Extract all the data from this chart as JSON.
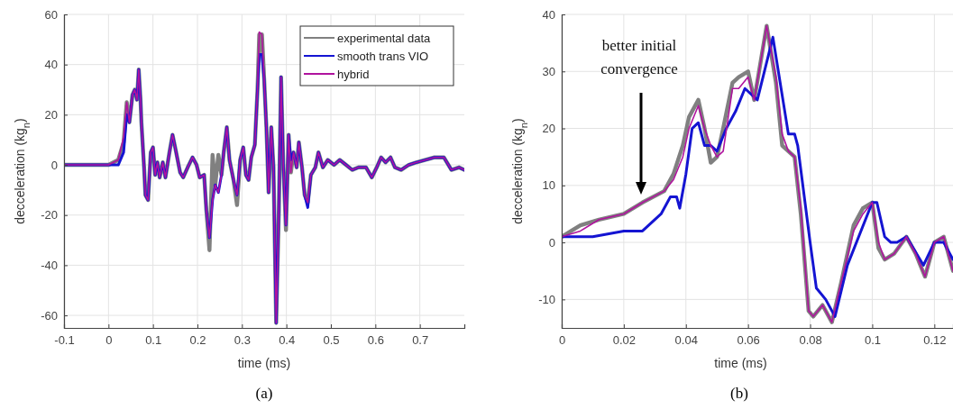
{
  "chart_data": [
    {
      "type": "line",
      "title": "(a)",
      "xlabel": "time (ms)",
      "ylabel": "decceleration (kg$_{n}$)",
      "xlim": [
        -0.1,
        0.8
      ],
      "xticks": [
        -0.1,
        0,
        0.1,
        0.2,
        0.3,
        0.4,
        0.5,
        0.6,
        0.7
      ],
      "ylim": [
        -65,
        60
      ],
      "yticks": [
        -60,
        -40,
        -20,
        0,
        20,
        40,
        60
      ],
      "grid": true,
      "legend": "top right",
      "x": [
        -0.1,
        0,
        0.022,
        0.034,
        0.041,
        0.047,
        0.054,
        0.059,
        0.064,
        0.068,
        0.072,
        0.074,
        0.08,
        0.083,
        0.089,
        0.095,
        0.1,
        0.105,
        0.11,
        0.115,
        0.122,
        0.128,
        0.137,
        0.144,
        0.151,
        0.161,
        0.168,
        0.178,
        0.189,
        0.198,
        0.205,
        0.215,
        0.22,
        0.227,
        0.234,
        0.24,
        0.247,
        0.254,
        0.259,
        0.266,
        0.272,
        0.281,
        0.289,
        0.296,
        0.303,
        0.309,
        0.315,
        0.321,
        0.329,
        0.335,
        0.339,
        0.345,
        0.35,
        0.355,
        0.36,
        0.366,
        0.371,
        0.377,
        0.383,
        0.388,
        0.393,
        0.399,
        0.405,
        0.41,
        0.416,
        0.423,
        0.428,
        0.435,
        0.441,
        0.448,
        0.455,
        0.465,
        0.472,
        0.482,
        0.493,
        0.507,
        0.52,
        0.534,
        0.548,
        0.562,
        0.579,
        0.592,
        0.603,
        0.613,
        0.623,
        0.634,
        0.644,
        0.658,
        0.675,
        0.692,
        0.713,
        0.733,
        0.754,
        0.771,
        0.788,
        0.8
      ],
      "series": [
        {
          "name": "experimental data",
          "color": "#808080",
          "values": [
            0,
            0,
            2,
            9,
            25,
            17,
            28,
            30,
            26,
            38,
            26,
            17,
            -1,
            -12,
            -14,
            5,
            7,
            -4,
            1,
            -5,
            1,
            -5,
            5,
            12,
            6,
            -3,
            -5,
            -1,
            3,
            0,
            -5,
            -4,
            -18,
            -34,
            4,
            -8,
            4,
            -4,
            5,
            15,
            2,
            -6,
            -16,
            2,
            7,
            -4,
            -6,
            3,
            8,
            30,
            52,
            52,
            34,
            15,
            -11,
            15,
            -1,
            -63,
            -18,
            35,
            0,
            -26,
            12,
            -3,
            5,
            -1,
            9,
            -1,
            -12,
            -15,
            -4,
            -1,
            5,
            -1,
            2,
            0,
            2,
            0,
            -2,
            -1,
            -1,
            -5,
            -1,
            3,
            1,
            3,
            -1,
            -2,
            0,
            1,
            2,
            3,
            3,
            -2,
            -1,
            -2
          ]
        },
        {
          "name": "smooth trans VIO",
          "color": "#1414d2",
          "values": [
            0,
            0,
            0,
            5,
            20,
            17,
            28,
            30,
            26,
            38,
            26,
            17,
            -1,
            -12,
            -14,
            5,
            7,
            -4,
            1,
            -5,
            1,
            -5,
            5,
            12,
            6,
            -3,
            -5,
            -1,
            3,
            0,
            -5,
            -4,
            -18,
            -29,
            -14,
            -8,
            -11,
            -4,
            5,
            15,
            2,
            -6,
            -12,
            2,
            7,
            -4,
            -6,
            3,
            8,
            30,
            44,
            44,
            34,
            15,
            -11,
            15,
            -1,
            -63,
            -18,
            35,
            0,
            -24,
            12,
            2,
            5,
            -1,
            9,
            -1,
            -12,
            -17,
            -4,
            -1,
            5,
            -1,
            2,
            0,
            2,
            0,
            -2,
            -1,
            -1,
            -5,
            -1,
            3,
            1,
            3,
            -1,
            -2,
            0,
            1,
            2,
            3,
            3,
            -2,
            -1,
            -2
          ]
        },
        {
          "name": "hybrid",
          "color": "#b0139e",
          "values": [
            0,
            0,
            2,
            11,
            25,
            17,
            28,
            30,
            26,
            38,
            26,
            17,
            -1,
            -12,
            -14,
            5,
            7,
            -4,
            1,
            -5,
            1,
            -5,
            5,
            12,
            6,
            -3,
            -5,
            -1,
            3,
            0,
            -5,
            -4,
            -18,
            -29,
            -14,
            -8,
            -11,
            -4,
            5,
            15,
            2,
            -6,
            -12,
            2,
            7,
            -4,
            -6,
            3,
            8,
            30,
            53,
            52,
            34,
            15,
            -11,
            15,
            -1,
            -63,
            -18,
            35,
            0,
            -24,
            12,
            -3,
            5,
            -1,
            9,
            -1,
            -12,
            -15,
            -4,
            -1,
            5,
            -1,
            2,
            0,
            2,
            0,
            -2,
            -1,
            -1,
            -5,
            -1,
            3,
            1,
            3,
            -1,
            -2,
            0,
            1,
            2,
            3,
            3,
            -2,
            -1,
            -2
          ]
        }
      ]
    },
    {
      "type": "line",
      "title": "(b)",
      "xlabel": "time (ms)",
      "ylabel": "decceleration (kg$_{n}$)",
      "xlim": [
        0,
        0.126
      ],
      "xticks": [
        0,
        0.02,
        0.04,
        0.06,
        0.08,
        0.1,
        0.12
      ],
      "ylim": [
        -15,
        40
      ],
      "yticks": [
        -10,
        0,
        10,
        20,
        30,
        40
      ],
      "grid": true,
      "annotations": [
        "better initial\nconvergence"
      ],
      "series": [
        {
          "color": "#808080",
          "x": [
            0,
            0.006,
            0.012,
            0.02,
            0.026,
            0.033,
            0.036,
            0.039,
            0.041,
            0.044,
            0.046,
            0.048,
            0.05,
            0.052,
            0.055,
            0.057,
            0.06,
            0.062,
            0.066,
            0.069,
            0.071,
            0.073,
            0.075,
            0.077,
            0.0795,
            0.081,
            0.084,
            0.087,
            0.09,
            0.094,
            0.097,
            0.1,
            0.102,
            0.104,
            0.107,
            0.111,
            0.114,
            0.117,
            0.12,
            0.123,
            0.126
          ],
          "values": [
            1,
            3,
            4,
            5,
            7,
            9,
            12,
            17,
            22,
            25,
            20,
            14,
            15,
            20,
            28,
            29,
            30,
            25,
            38,
            28,
            17,
            16,
            15,
            5,
            -12,
            -13,
            -11,
            -14,
            -7,
            3,
            6,
            7,
            -1,
            -3,
            -2,
            1,
            -2,
            -6,
            0,
            1,
            -5
          ]
        },
        {
          "color": "#1414d2",
          "x": [
            0,
            0.01,
            0.02,
            0.026,
            0.032,
            0.035,
            0.037,
            0.038,
            0.04,
            0.042,
            0.044,
            0.046,
            0.048,
            0.05,
            0.053,
            0.056,
            0.059,
            0.063,
            0.068,
            0.073,
            0.075,
            0.076,
            0.08,
            0.082,
            0.085,
            0.088,
            0.092,
            0.1,
            0.1015,
            0.104,
            0.106,
            0.108,
            0.111,
            0.1165,
            0.12,
            0.123,
            0.126
          ],
          "values": [
            1,
            1,
            2,
            2,
            5,
            8,
            8,
            6,
            12,
            20,
            21,
            17,
            17,
            16,
            20,
            23,
            27,
            25,
            36,
            19,
            19,
            17,
            0,
            -8,
            -10,
            -13,
            -4,
            7,
            7,
            1,
            0,
            0,
            1,
            -4,
            0,
            0,
            -3
          ]
        },
        {
          "color": "#b0139e",
          "x": [
            0,
            0.006,
            0.012,
            0.02,
            0.026,
            0.033,
            0.036,
            0.039,
            0.041,
            0.044,
            0.046,
            0.048,
            0.05,
            0.052,
            0.055,
            0.057,
            0.06,
            0.062,
            0.066,
            0.069,
            0.071,
            0.073,
            0.075,
            0.077,
            0.0795,
            0.081,
            0.084,
            0.087,
            0.09,
            0.094,
            0.097,
            0.1,
            0.102,
            0.104,
            0.107,
            0.111,
            0.114,
            0.117,
            0.12,
            0.123,
            0.126
          ],
          "values": [
            1,
            2,
            4,
            5,
            7,
            9,
            11,
            15,
            20,
            24,
            20,
            17,
            15,
            16,
            27,
            27,
            29,
            25,
            38,
            29,
            19,
            16,
            15,
            6,
            -12,
            -13,
            -11,
            -14,
            -7,
            2,
            5,
            7,
            0,
            -3,
            -2,
            1,
            -2,
            -6,
            0,
            1,
            -5
          ]
        }
      ]
    }
  ]
}
